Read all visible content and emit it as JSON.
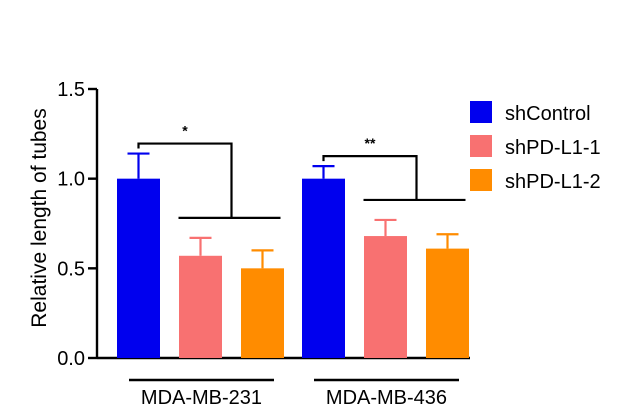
{
  "chart_data": {
    "type": "bar",
    "ylabel": "Relative length of tubes",
    "ylim": [
      0,
      1.5
    ],
    "yticks": [
      "0.0",
      "0.5",
      "1.0",
      "1.5"
    ],
    "groups": [
      "MDA-MB-231",
      "MDA-MB-436"
    ],
    "series": [
      {
        "name": "shControl",
        "color": "#0000ee",
        "values": [
          1.0,
          1.0
        ],
        "errors": [
          0.14,
          0.07
        ]
      },
      {
        "name": "shPD-L1-1",
        "color": "#f87171",
        "values": [
          0.57,
          0.68
        ],
        "errors": [
          0.1,
          0.09
        ]
      },
      {
        "name": "shPD-L1-2",
        "color": "#ff8c00",
        "values": [
          0.5,
          0.61
        ],
        "errors": [
          0.1,
          0.08
        ]
      }
    ],
    "significance": [
      "*",
      "**"
    ],
    "legend_position": "top-right"
  }
}
